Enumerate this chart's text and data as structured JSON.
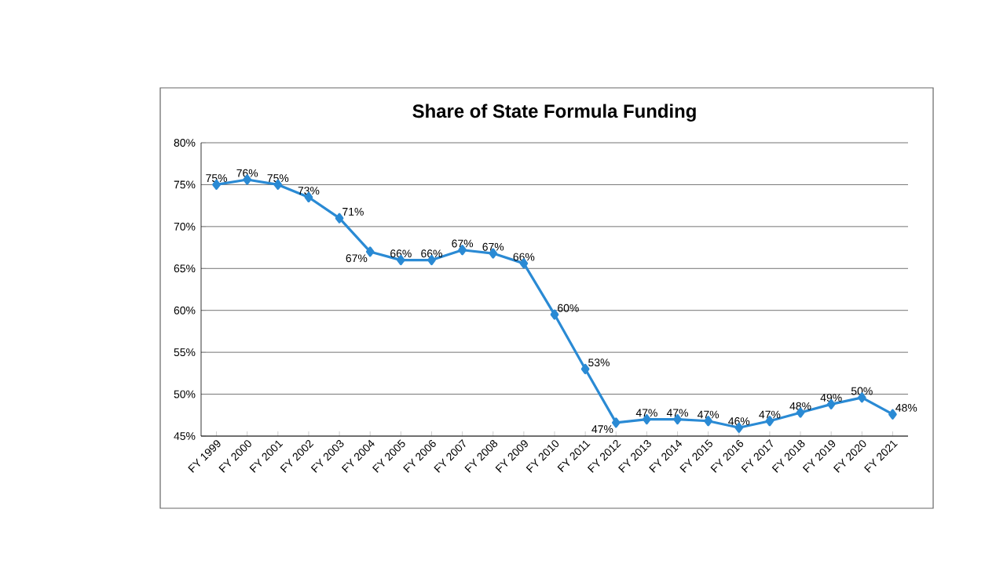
{
  "chart_data": {
    "type": "line",
    "title": "Share of State Formula Funding",
    "categories": [
      "FY 1999",
      "FY 2000",
      "FY 2001",
      "FY 2002",
      "FY 2003",
      "FY 2004",
      "FY 2005",
      "FY 2006",
      "FY 2007",
      "FY 2008",
      "FY 2009",
      "FY 2010",
      "FY 2011",
      "FY 2012",
      "FY 2013",
      "FY 2014",
      "FY 2015",
      "FY 2016",
      "FY 2017",
      "FY 2018",
      "FY 2019",
      "FY 2020",
      "FY 2021"
    ],
    "values": [
      75,
      75.6,
      75,
      73.5,
      71,
      67,
      66,
      66,
      67.2,
      66.8,
      65.6,
      59.5,
      53,
      46.6,
      47,
      47,
      46.8,
      46,
      46.8,
      47.8,
      48.8,
      49.6,
      47.6
    ],
    "value_labels": [
      "75%",
      "76%",
      "75%",
      "73%",
      "71%",
      "67%",
      "66%",
      "66%",
      "67%",
      "67%",
      "66%",
      "60%",
      "53%",
      "47%",
      "47%",
      "47%",
      "47%",
      "46%",
      "47%",
      "48%",
      "49%",
      "50%",
      "48%"
    ],
    "color": "#2a8ad4",
    "marker": "diamond",
    "line_style": "solid",
    "grid": "y",
    "ylim": [
      45,
      80
    ],
    "yticks": [
      {
        "value": 45,
        "label": "45%"
      },
      {
        "value": 50,
        "label": "50%"
      },
      {
        "value": 55,
        "label": "55%"
      },
      {
        "value": 60,
        "label": "60%"
      },
      {
        "value": 65,
        "label": "65%"
      },
      {
        "value": 70,
        "label": "70%"
      },
      {
        "value": 75,
        "label": "75%"
      },
      {
        "value": 80,
        "label": "80%"
      }
    ]
  }
}
